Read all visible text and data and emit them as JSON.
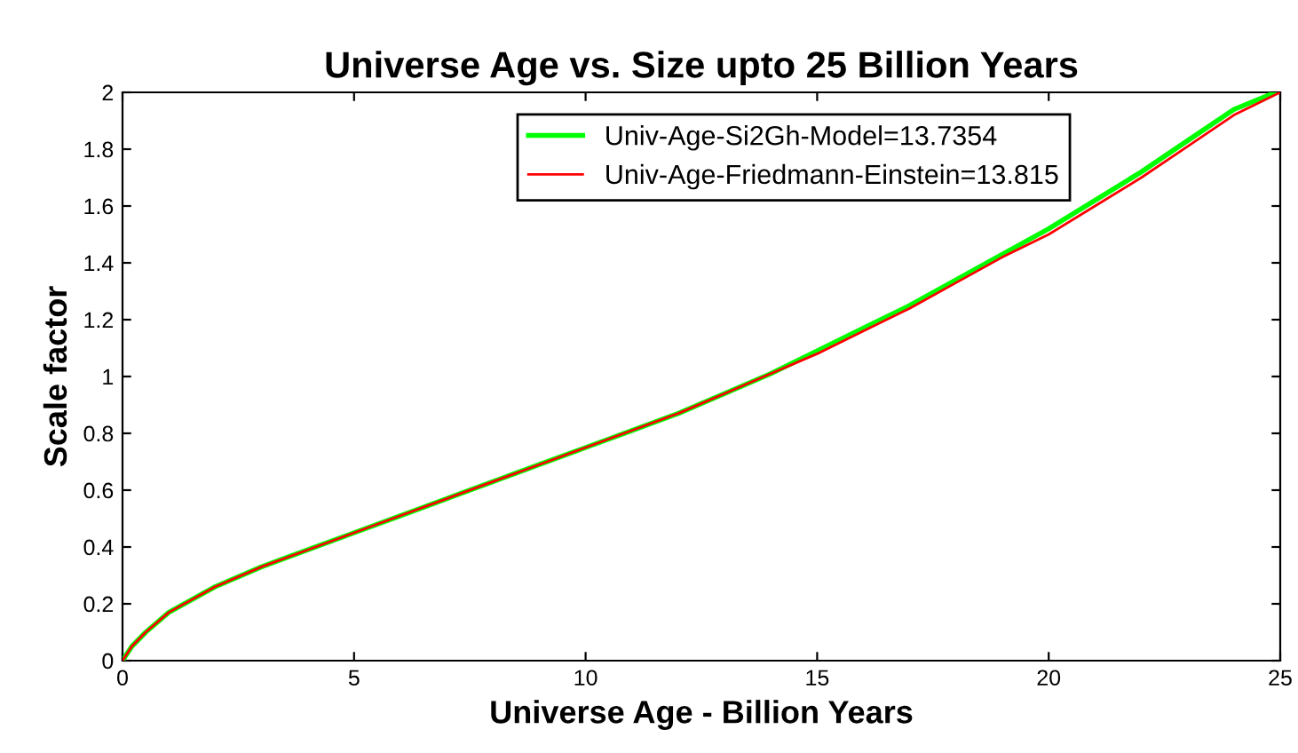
{
  "chart_data": {
    "type": "line",
    "title": "Universe Age vs. Size upto 25 Billion Years",
    "xlabel": "Universe Age - Billion Years",
    "ylabel": "Scale factor",
    "series": [
      {
        "name": "Univ-Age-Si2Gh-Model=13.7354",
        "color": "#00ff00",
        "x": [
          0,
          0.2,
          0.5,
          1,
          2,
          3,
          4,
          5,
          6,
          7,
          8,
          9,
          10,
          11,
          12,
          13,
          14,
          15,
          16,
          17,
          18,
          19,
          20,
          21,
          22,
          23,
          24,
          24.9
        ],
        "values": [
          0,
          0.05,
          0.1,
          0.17,
          0.26,
          0.33,
          0.39,
          0.45,
          0.51,
          0.57,
          0.63,
          0.69,
          0.75,
          0.81,
          0.87,
          0.94,
          1.01,
          1.09,
          1.17,
          1.25,
          1.34,
          1.43,
          1.52,
          1.62,
          1.72,
          1.83,
          1.94,
          2.0
        ]
      },
      {
        "name": "Univ-Age-Friedmann-Einstein=13.815",
        "color": "#ff0000",
        "x": [
          0,
          0.2,
          0.5,
          1,
          2,
          3,
          4,
          5,
          6,
          7,
          8,
          9,
          10,
          11,
          12,
          13,
          14,
          15,
          16,
          17,
          18,
          19,
          20,
          21,
          22,
          23,
          24,
          25
        ],
        "values": [
          0,
          0.05,
          0.1,
          0.17,
          0.26,
          0.33,
          0.39,
          0.45,
          0.51,
          0.57,
          0.63,
          0.69,
          0.75,
          0.81,
          0.87,
          0.94,
          1.01,
          1.08,
          1.16,
          1.24,
          1.33,
          1.42,
          1.5,
          1.6,
          1.7,
          1.81,
          1.92,
          2.0
        ]
      }
    ],
    "xlim": [
      0,
      25
    ],
    "ylim": [
      0,
      2
    ],
    "xticks": [
      0,
      5,
      10,
      15,
      20,
      25
    ],
    "yticks": [
      0,
      0.2,
      0.4,
      0.6,
      0.8,
      1,
      1.2,
      1.4,
      1.6,
      1.8,
      2
    ],
    "legend": "top right",
    "grid": false,
    "marker": "none",
    "line_style": "solid"
  }
}
